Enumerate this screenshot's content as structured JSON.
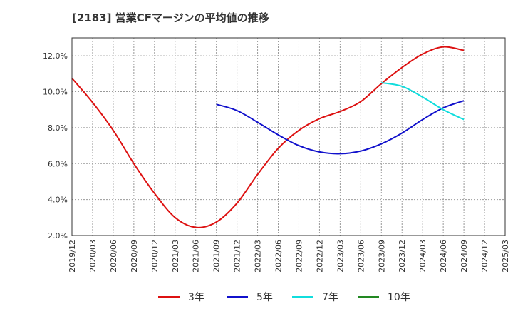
{
  "title": "[2183]  営業CFマージンの平均値の推移",
  "chart_data": {
    "type": "line",
    "title": "[2183]  営業CFマージンの平均値の推移",
    "xlabel": "",
    "ylabel": "",
    "x_ticks": [
      "2019/12",
      "2020/03",
      "2020/06",
      "2020/09",
      "2020/12",
      "2021/03",
      "2021/06",
      "2021/09",
      "2021/12",
      "2022/03",
      "2022/06",
      "2022/09",
      "2022/12",
      "2023/03",
      "2023/06",
      "2023/09",
      "2023/12",
      "2024/03",
      "2024/06",
      "2024/09",
      "2024/12",
      "2025/03"
    ],
    "y_ticks": [
      "2.0%",
      "4.0%",
      "6.0%",
      "8.0%",
      "10.0%",
      "12.0%"
    ],
    "y_tick_values": [
      2,
      4,
      6,
      8,
      10,
      12
    ],
    "ylim": [
      2,
      13
    ],
    "grid": true,
    "legend_position": "bottom",
    "series": [
      {
        "name": "3年",
        "color": "#dd1111",
        "points": [
          [
            "2019/12",
            10.75
          ],
          [
            "2020/03",
            9.4
          ],
          [
            "2020/06",
            7.85
          ],
          [
            "2020/09",
            6.0
          ],
          [
            "2020/12",
            4.35
          ],
          [
            "2021/03",
            3.0
          ],
          [
            "2021/06",
            2.45
          ],
          [
            "2021/09",
            2.75
          ],
          [
            "2021/12",
            3.8
          ],
          [
            "2022/03",
            5.4
          ],
          [
            "2022/06",
            6.85
          ],
          [
            "2022/09",
            7.85
          ],
          [
            "2022/12",
            8.5
          ],
          [
            "2023/03",
            8.9
          ],
          [
            "2023/06",
            9.45
          ],
          [
            "2023/09",
            10.45
          ],
          [
            "2023/12",
            11.35
          ],
          [
            "2024/03",
            12.1
          ],
          [
            "2024/06",
            12.5
          ],
          [
            "2024/09",
            12.3
          ]
        ]
      },
      {
        "name": "5年",
        "color": "#1111cc",
        "points": [
          [
            "2021/09",
            9.3
          ],
          [
            "2021/12",
            8.95
          ],
          [
            "2022/03",
            8.3
          ],
          [
            "2022/06",
            7.6
          ],
          [
            "2022/09",
            7.0
          ],
          [
            "2022/12",
            6.65
          ],
          [
            "2023/03",
            6.55
          ],
          [
            "2023/06",
            6.7
          ],
          [
            "2023/09",
            7.1
          ],
          [
            "2023/12",
            7.7
          ],
          [
            "2024/03",
            8.45
          ],
          [
            "2024/06",
            9.1
          ],
          [
            "2024/09",
            9.5
          ]
        ]
      },
      {
        "name": "7年",
        "color": "#11dddd",
        "points": [
          [
            "2023/09",
            10.5
          ],
          [
            "2023/12",
            10.3
          ],
          [
            "2024/03",
            9.7
          ],
          [
            "2024/06",
            9.0
          ],
          [
            "2024/09",
            8.45
          ]
        ]
      },
      {
        "name": "10年",
        "color": "#228822",
        "points": []
      }
    ]
  }
}
